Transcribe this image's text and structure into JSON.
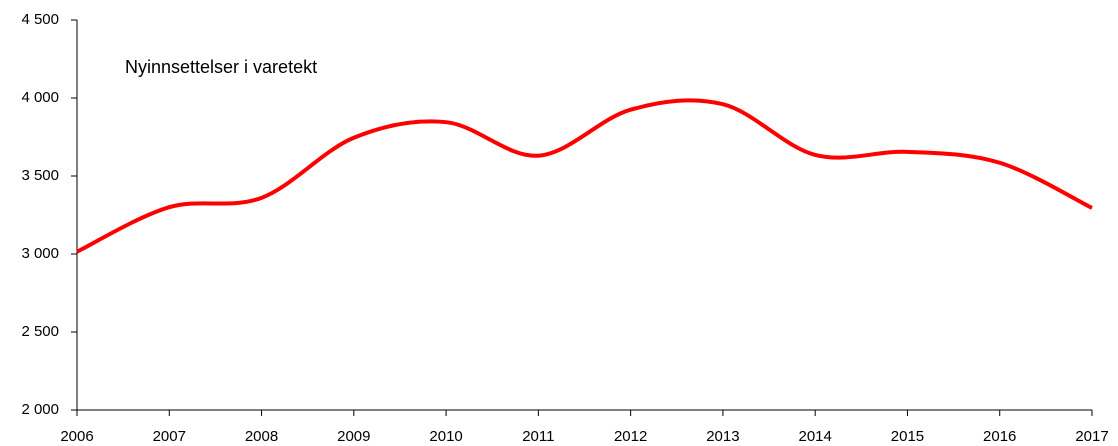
{
  "chart_data": {
    "type": "line",
    "annotation": "Nyinnsettelser i varetekt",
    "categories": [
      "2006",
      "2007",
      "2008",
      "2009",
      "2010",
      "2011",
      "2012",
      "2013",
      "2014",
      "2015",
      "2016",
      "2017"
    ],
    "series": [
      {
        "name": "Nyinnsettelser i varetekt",
        "color": "#ff0000",
        "values": [
          3015,
          3300,
          3360,
          3745,
          3845,
          3630,
          3925,
          3960,
          3635,
          3655,
          3585,
          3295
        ]
      }
    ],
    "ylim": [
      2000,
      4500
    ],
    "yticks": [
      {
        "value": 2000,
        "label": "2 000"
      },
      {
        "value": 2500,
        "label": "2 500"
      },
      {
        "value": 3000,
        "label": "3 000"
      },
      {
        "value": 3500,
        "label": "3 500"
      },
      {
        "value": 4000,
        "label": "4 000"
      },
      {
        "value": 4500,
        "label": "4 500"
      }
    ],
    "grid": false
  }
}
